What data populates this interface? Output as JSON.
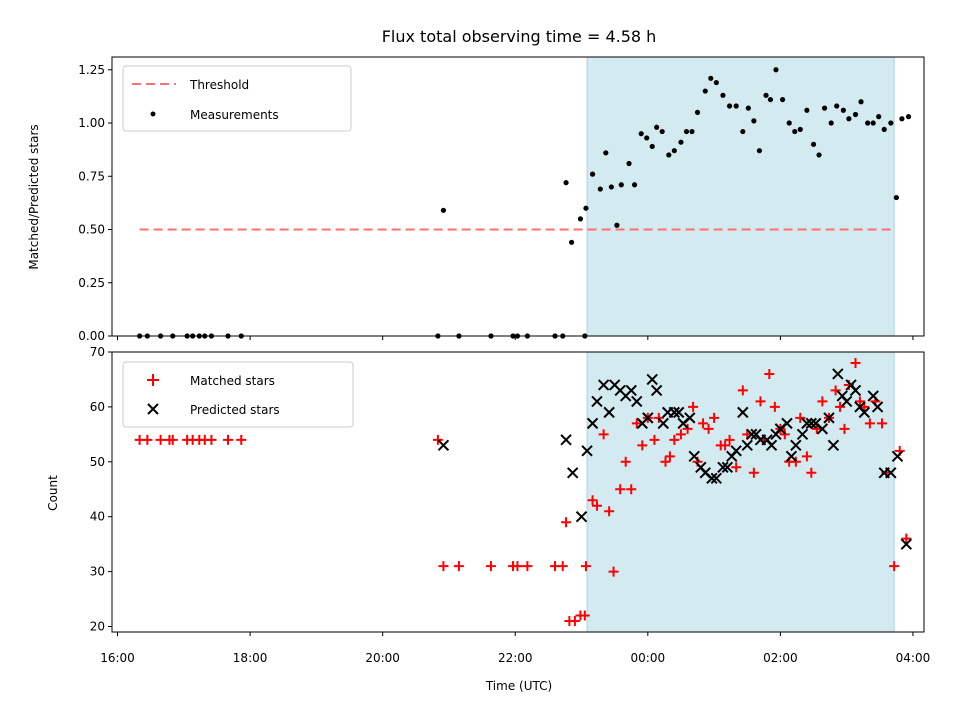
{
  "chart_data": [
    {
      "type": "scatter",
      "title": "Flux total observing time = 4.58 h",
      "xlabel": "",
      "ylabel": "Matched/Predicted stars",
      "xlim": [
        "16:00",
        "04:00"
      ],
      "ylim": [
        0,
        1.31
      ],
      "yticks": [
        "0.00",
        "0.25",
        "0.50",
        "0.75",
        "1.00",
        "1.25"
      ],
      "shaded_span": {
        "start": "23:05",
        "end": "03:43",
        "color": "#d3eaf1"
      },
      "legend_position": "upper-left",
      "series": [
        {
          "name": "Threshold",
          "kind": "dashed-line",
          "color": "#ff7070",
          "points": [
            [
              "16:20",
              0.5
            ],
            [
              "03:43",
              0.5
            ]
          ]
        },
        {
          "name": "Measurements",
          "kind": "dots",
          "color": "#000000",
          "points": [
            [
              "16:20",
              0
            ],
            [
              "16:27",
              0
            ],
            [
              "16:39",
              0
            ],
            [
              "16:50",
              0
            ],
            [
              "17:03",
              0
            ],
            [
              "17:08",
              0
            ],
            [
              "17:14",
              0
            ],
            [
              "17:19",
              0
            ],
            [
              "17:25",
              0
            ],
            [
              "17:40",
              0
            ],
            [
              "17:52",
              0
            ],
            [
              "20:50",
              0
            ],
            [
              "20:55",
              0.59
            ],
            [
              "21:09",
              0
            ],
            [
              "21:38",
              0
            ],
            [
              "21:58",
              0
            ],
            [
              "22:02",
              0
            ],
            [
              "22:11",
              0
            ],
            [
              "22:36",
              0
            ],
            [
              "22:43",
              0
            ],
            [
              "22:46",
              0.72
            ],
            [
              "22:51",
              0.44
            ],
            [
              "22:59",
              0.55
            ],
            [
              "23:03",
              0
            ],
            [
              "23:04",
              0.6
            ],
            [
              "23:10",
              0.76
            ],
            [
              "23:17",
              0.69
            ],
            [
              "23:22",
              0.86
            ],
            [
              "23:27",
              0.7
            ],
            [
              "23:32",
              0.52
            ],
            [
              "23:36",
              0.71
            ],
            [
              "23:43",
              0.81
            ],
            [
              "23:48",
              0.71
            ],
            [
              "23:54",
              0.95
            ],
            [
              "23:59",
              0.93
            ],
            [
              "00:04",
              0.89
            ],
            [
              "00:08",
              0.98
            ],
            [
              "00:13",
              0.96
            ],
            [
              "00:19",
              0.85
            ],
            [
              "00:24",
              0.87
            ],
            [
              "00:30",
              0.91
            ],
            [
              "00:35",
              0.96
            ],
            [
              "00:40",
              0.96
            ],
            [
              "00:45",
              1.05
            ],
            [
              "00:52",
              1.15
            ],
            [
              "00:57",
              1.21
            ],
            [
              "01:02",
              1.19
            ],
            [
              "01:08",
              1.13
            ],
            [
              "01:14",
              1.08
            ],
            [
              "01:20",
              1.08
            ],
            [
              "01:26",
              0.96
            ],
            [
              "01:31",
              1.07
            ],
            [
              "01:36",
              1.01
            ],
            [
              "01:41",
              0.87
            ],
            [
              "01:47",
              1.13
            ],
            [
              "01:51",
              1.11
            ],
            [
              "01:56",
              1.25
            ],
            [
              "02:02",
              1.11
            ],
            [
              "02:08",
              1.0
            ],
            [
              "02:13",
              0.96
            ],
            [
              "02:18",
              0.97
            ],
            [
              "02:24",
              1.06
            ],
            [
              "02:30",
              0.9
            ],
            [
              "02:35",
              0.85
            ],
            [
              "02:40",
              1.07
            ],
            [
              "02:46",
              1.0
            ],
            [
              "02:51",
              1.08
            ],
            [
              "02:57",
              1.06
            ],
            [
              "03:02",
              1.02
            ],
            [
              "03:08",
              1.04
            ],
            [
              "03:13",
              1.1
            ],
            [
              "03:19",
              1.0
            ],
            [
              "03:24",
              1.0
            ],
            [
              "03:29",
              1.03
            ],
            [
              "03:34",
              0.97
            ],
            [
              "03:40",
              1.0
            ],
            [
              "03:45",
              0.65
            ],
            [
              "03:50",
              1.02
            ],
            [
              "03:56",
              1.03
            ]
          ]
        }
      ]
    },
    {
      "type": "scatter",
      "title": "",
      "xlabel": "Time (UTC)",
      "ylabel": "Count",
      "xlim": [
        "16:00",
        "04:00"
      ],
      "ylim": [
        19,
        70
      ],
      "xticks": [
        "16:00",
        "18:00",
        "20:00",
        "22:00",
        "00:00",
        "02:00",
        "04:00"
      ],
      "yticks": [
        "20",
        "30",
        "40",
        "50",
        "60",
        "70"
      ],
      "shaded_span": {
        "start": "23:05",
        "end": "03:43",
        "color": "#d3eaf1"
      },
      "legend_position": "upper-left",
      "series": [
        {
          "name": "Matched stars",
          "kind": "plus",
          "color": "#ff0000",
          "points": [
            [
              "16:20",
              54
            ],
            [
              "16:27",
              54
            ],
            [
              "16:39",
              54
            ],
            [
              "16:47",
              54
            ],
            [
              "16:50",
              54
            ],
            [
              "17:03",
              54
            ],
            [
              "17:08",
              54
            ],
            [
              "17:14",
              54
            ],
            [
              "17:19",
              54
            ],
            [
              "17:25",
              54
            ],
            [
              "17:40",
              54
            ],
            [
              "17:52",
              54
            ],
            [
              "20:50",
              54
            ],
            [
              "20:55",
              31
            ],
            [
              "21:09",
              31
            ],
            [
              "21:38",
              31
            ],
            [
              "21:58",
              31
            ],
            [
              "22:02",
              31
            ],
            [
              "22:11",
              31
            ],
            [
              "22:36",
              31
            ],
            [
              "22:43",
              31
            ],
            [
              "22:46",
              39
            ],
            [
              "22:49",
              21
            ],
            [
              "22:54",
              21
            ],
            [
              "22:59",
              22
            ],
            [
              "23:03",
              22
            ],
            [
              "23:04",
              31
            ],
            [
              "23:10",
              43
            ],
            [
              "23:14",
              42
            ],
            [
              "23:20",
              55
            ],
            [
              "23:25",
              41
            ],
            [
              "23:29",
              30
            ],
            [
              "23:35",
              45
            ],
            [
              "23:40",
              50
            ],
            [
              "23:45",
              45
            ],
            [
              "23:50",
              57
            ],
            [
              "23:55",
              53
            ],
            [
              "00:00",
              58
            ],
            [
              "00:06",
              54
            ],
            [
              "00:10",
              58
            ],
            [
              "00:16",
              50
            ],
            [
              "00:20",
              51
            ],
            [
              "00:24",
              54
            ],
            [
              "00:30",
              55
            ],
            [
              "00:36",
              56
            ],
            [
              "00:41",
              60
            ],
            [
              "00:45",
              50
            ],
            [
              "00:50",
              57
            ],
            [
              "00:55",
              56
            ],
            [
              "01:00",
              58
            ],
            [
              "01:06",
              53
            ],
            [
              "01:10",
              53
            ],
            [
              "01:14",
              54
            ],
            [
              "01:20",
              49
            ],
            [
              "01:26",
              63
            ],
            [
              "01:30",
              55
            ],
            [
              "01:36",
              48
            ],
            [
              "01:42",
              61
            ],
            [
              "01:45",
              54
            ],
            [
              "01:50",
              66
            ],
            [
              "01:55",
              60
            ],
            [
              "02:00",
              56
            ],
            [
              "02:04",
              55
            ],
            [
              "02:08",
              50
            ],
            [
              "02:14",
              50
            ],
            [
              "02:18",
              58
            ],
            [
              "02:24",
              51
            ],
            [
              "02:28",
              48
            ],
            [
              "02:33",
              56
            ],
            [
              "02:38",
              61
            ],
            [
              "02:44",
              58
            ],
            [
              "02:50",
              63
            ],
            [
              "02:54",
              60
            ],
            [
              "02:58",
              56
            ],
            [
              "03:02",
              64
            ],
            [
              "03:08",
              68
            ],
            [
              "03:12",
              61
            ],
            [
              "03:16",
              60
            ],
            [
              "03:21",
              57
            ],
            [
              "03:26",
              61
            ],
            [
              "03:32",
              57
            ],
            [
              "03:36",
              48
            ],
            [
              "03:43",
              31
            ],
            [
              "03:48",
              52
            ],
            [
              "03:54",
              36
            ]
          ]
        },
        {
          "name": "Predicted stars",
          "kind": "x",
          "color": "#000000",
          "points": [
            [
              "20:55",
              53
            ],
            [
              "22:46",
              54
            ],
            [
              "22:52",
              48
            ],
            [
              "23:00",
              40
            ],
            [
              "23:05",
              52
            ],
            [
              "23:10",
              57
            ],
            [
              "23:14",
              61
            ],
            [
              "23:20",
              64
            ],
            [
              "23:25",
              59
            ],
            [
              "23:30",
              64
            ],
            [
              "23:35",
              63
            ],
            [
              "23:40",
              62
            ],
            [
              "23:45",
              63
            ],
            [
              "23:50",
              61
            ],
            [
              "23:55",
              57
            ],
            [
              "00:00",
              58
            ],
            [
              "00:04",
              65
            ],
            [
              "00:08",
              63
            ],
            [
              "00:14",
              57
            ],
            [
              "00:18",
              59
            ],
            [
              "00:24",
              59
            ],
            [
              "00:28",
              59
            ],
            [
              "00:32",
              57
            ],
            [
              "00:38",
              58
            ],
            [
              "00:42",
              51
            ],
            [
              "00:48",
              49
            ],
            [
              "00:52",
              48
            ],
            [
              "00:58",
              47
            ],
            [
              "01:02",
              47
            ],
            [
              "01:08",
              49
            ],
            [
              "01:12",
              49
            ],
            [
              "01:16",
              51
            ],
            [
              "01:20",
              52
            ],
            [
              "01:26",
              59
            ],
            [
              "01:30",
              53
            ],
            [
              "01:34",
              55
            ],
            [
              "01:38",
              55
            ],
            [
              "01:42",
              54
            ],
            [
              "01:48",
              54
            ],
            [
              "01:52",
              53
            ],
            [
              "01:56",
              55
            ],
            [
              "02:00",
              56
            ],
            [
              "02:06",
              57
            ],
            [
              "02:10",
              51
            ],
            [
              "02:14",
              53
            ],
            [
              "02:20",
              55
            ],
            [
              "02:24",
              57
            ],
            [
              "02:28",
              57
            ],
            [
              "02:32",
              57
            ],
            [
              "02:38",
              56
            ],
            [
              "02:44",
              58
            ],
            [
              "02:48",
              53
            ],
            [
              "02:52",
              66
            ],
            [
              "02:56",
              62
            ],
            [
              "03:00",
              61
            ],
            [
              "03:04",
              64
            ],
            [
              "03:08",
              63
            ],
            [
              "03:12",
              60
            ],
            [
              "03:16",
              59
            ],
            [
              "03:24",
              62
            ],
            [
              "03:28",
              60
            ],
            [
              "03:34",
              48
            ],
            [
              "03:40",
              48
            ],
            [
              "03:46",
              51
            ],
            [
              "03:54",
              35
            ]
          ]
        }
      ]
    }
  ]
}
